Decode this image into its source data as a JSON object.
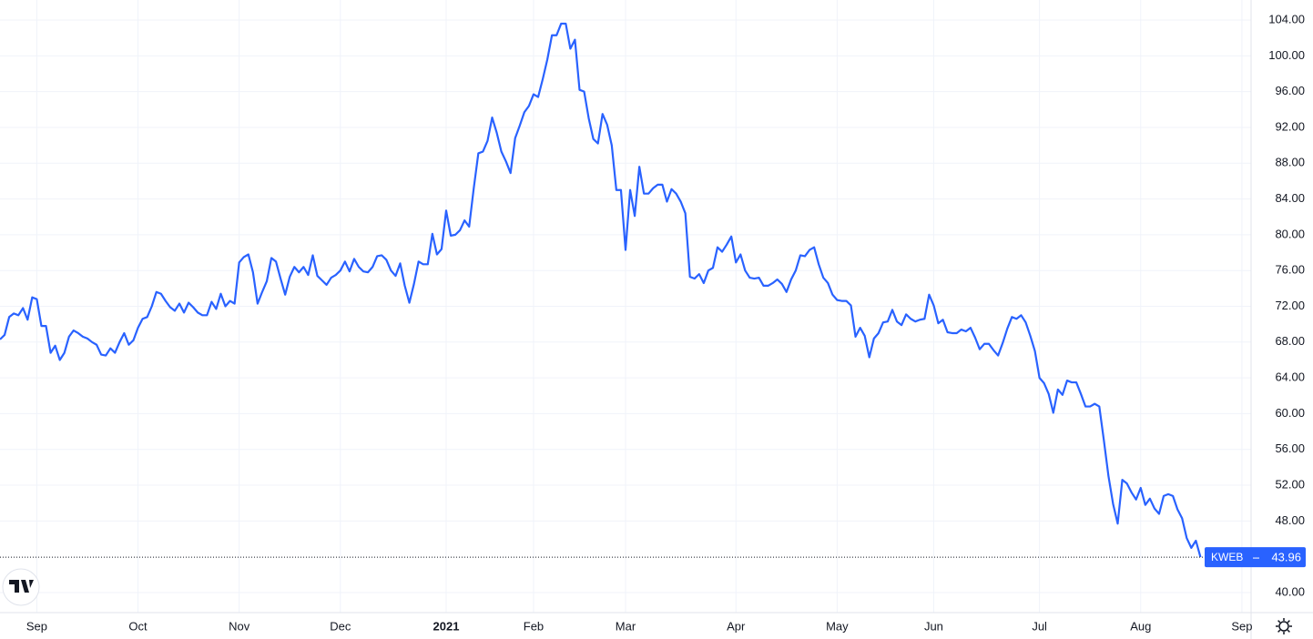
{
  "chart_data": {
    "type": "line",
    "series": [
      {
        "name": "KWEB",
        "color": "#2962ff",
        "values": [
          68.3,
          68.8,
          70.8,
          71.2,
          71.0,
          71.8,
          70.5,
          73.0,
          72.8,
          69.8,
          69.8,
          66.8,
          67.6,
          66.0,
          66.8,
          68.6,
          69.3,
          69.0,
          68.6,
          68.4,
          68.0,
          67.7,
          66.6,
          66.5,
          67.3,
          66.8,
          68.0,
          69.0,
          67.7,
          68.2,
          69.6,
          70.6,
          70.8,
          72.0,
          73.6,
          73.4,
          72.6,
          71.9,
          71.5,
          72.3,
          71.3,
          72.4,
          71.9,
          71.3,
          71.0,
          71.0,
          72.5,
          71.7,
          73.4,
          72.0,
          72.6,
          72.3,
          76.9,
          77.5,
          77.8,
          75.8,
          72.3,
          73.6,
          74.8,
          77.4,
          77.0,
          75.1,
          73.3,
          75.3,
          76.4,
          75.8,
          76.4,
          75.5,
          77.7,
          75.4,
          74.9,
          74.4,
          75.2,
          75.5,
          76.0,
          77.0,
          75.9,
          77.3,
          76.4,
          75.9,
          75.8,
          76.4,
          77.6,
          77.7,
          77.2,
          76.0,
          75.4,
          76.8,
          74.3,
          72.4,
          74.5,
          77.0,
          76.7,
          76.7,
          80.1,
          77.8,
          78.4,
          82.7,
          79.9,
          80.0,
          80.5,
          81.6,
          80.9,
          85.2,
          89.1,
          89.3,
          90.5,
          93.1,
          91.4,
          89.3,
          88.2,
          86.9,
          90.8,
          92.2,
          93.7,
          94.4,
          95.7,
          95.4,
          97.4,
          99.6,
          102.3,
          102.3,
          103.6,
          103.6,
          100.8,
          101.8,
          96.2,
          96.0,
          93.0,
          90.7,
          90.2,
          93.5,
          92.3,
          90.0,
          85.0,
          85.0,
          78.3,
          85.0,
          82.1,
          87.6,
          84.6,
          84.6,
          85.2,
          85.6,
          85.6,
          83.7,
          85.1,
          84.6,
          83.7,
          82.4,
          75.3,
          75.1,
          75.6,
          74.6,
          76.0,
          76.3,
          78.6,
          78.1,
          78.9,
          79.8,
          76.9,
          77.8,
          76.0,
          75.2,
          75.1,
          75.2,
          74.3,
          74.3,
          74.6,
          75.0,
          74.5,
          73.6,
          75.0,
          76.0,
          77.7,
          77.6,
          78.3,
          78.6,
          76.7,
          75.2,
          74.6,
          73.3,
          72.7,
          72.6,
          72.6,
          72.1,
          68.6,
          69.6,
          68.7,
          66.3,
          68.4,
          69.0,
          70.2,
          70.3,
          71.6,
          70.3,
          69.9,
          71.1,
          70.6,
          70.3,
          70.5,
          70.6,
          73.3,
          72.1,
          70.1,
          70.5,
          69.1,
          69.0,
          69.0,
          69.4,
          69.2,
          69.6,
          68.5,
          67.2,
          67.8,
          67.8,
          67.1,
          66.5,
          67.9,
          69.5,
          70.8,
          70.6,
          71.0,
          70.2,
          68.7,
          67.0,
          64.0,
          63.4,
          62.2,
          60.1,
          62.7,
          62.1,
          63.7,
          63.5,
          63.5,
          62.2,
          60.8,
          60.8,
          61.1,
          60.8,
          57.0,
          53.0,
          49.9,
          47.7,
          52.6,
          52.2,
          51.2,
          50.4,
          51.7,
          49.8,
          50.5,
          49.4,
          48.8,
          50.8,
          51.0,
          50.8,
          49.3,
          48.3,
          46.1,
          45.0,
          45.8,
          43.96
        ]
      }
    ],
    "xlim": [
      0,
      272
    ],
    "xticks": [
      {
        "value": 8,
        "label": "Sep"
      },
      {
        "value": 30,
        "label": "Oct"
      },
      {
        "value": 52,
        "label": "Nov"
      },
      {
        "value": 74,
        "label": "Dec"
      },
      {
        "value": 97,
        "label": "2021",
        "bold": true
      },
      {
        "value": 116,
        "label": "Feb"
      },
      {
        "value": 136,
        "label": "Mar"
      },
      {
        "value": 160,
        "label": "Apr"
      },
      {
        "value": 182,
        "label": "May"
      },
      {
        "value": 203,
        "label": "Jun"
      },
      {
        "value": 226,
        "label": "Jul"
      },
      {
        "value": 248,
        "label": "Aug"
      },
      {
        "value": 270,
        "label": "Sep"
      }
    ],
    "ylim": [
      37.76,
      106.24
    ],
    "yticks": [
      {
        "value": 40,
        "label": "40.00"
      },
      {
        "value": 48,
        "label": "48.00"
      },
      {
        "value": 52,
        "label": "52.00"
      },
      {
        "value": 56,
        "label": "56.00"
      },
      {
        "value": 60,
        "label": "60.00"
      },
      {
        "value": 64,
        "label": "64.00"
      },
      {
        "value": 68,
        "label": "68.00"
      },
      {
        "value": 72,
        "label": "72.00"
      },
      {
        "value": 76,
        "label": "76.00"
      },
      {
        "value": 80,
        "label": "80.00"
      },
      {
        "value": 84,
        "label": "84.00"
      },
      {
        "value": 88,
        "label": "88.00"
      },
      {
        "value": 92,
        "label": "92.00"
      },
      {
        "value": 96,
        "label": "96.00"
      },
      {
        "value": 100,
        "label": "100.00"
      },
      {
        "value": 104,
        "label": "104.00"
      }
    ],
    "grid": true
  }
}
